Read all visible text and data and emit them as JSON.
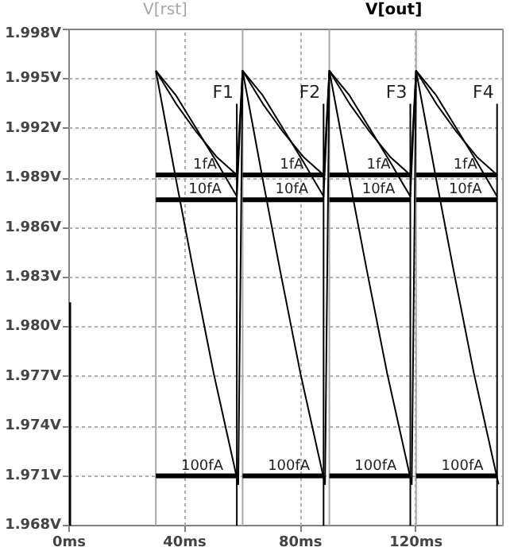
{
  "chart_data": {
    "type": "line",
    "series": [
      {
        "name": "V[rst]",
        "color": "#a8a8a8",
        "x": [
          30,
          30,
          null,
          60,
          60,
          null,
          90,
          90,
          null,
          120,
          120,
          null,
          150,
          150
        ],
        "values": [
          1.968,
          1.998,
          null,
          1.968,
          1.998,
          null,
          1.968,
          1.998,
          null,
          1.968,
          1.998,
          null,
          1.968,
          1.998
        ]
      },
      {
        "name": "V[out]",
        "color": "#000000",
        "x": [
          30,
          37,
          44,
          51,
          58,
          60,
          67,
          74,
          81,
          88,
          90,
          97,
          104,
          111,
          118,
          120,
          127,
          134,
          141,
          148
        ],
        "values": [
          1.9955,
          1.9935,
          1.9918,
          1.9903,
          1.9892,
          1.9955,
          1.9935,
          1.9918,
          1.9903,
          1.9892,
          1.9955,
          1.9935,
          1.9918,
          1.9903,
          1.9892,
          1.9955,
          1.9935,
          1.9918,
          1.9903,
          1.9892
        ]
      },
      {
        "color": "#000000",
        "x": [
          30,
          37,
          44,
          51,
          58,
          60,
          67,
          74,
          81,
          88,
          90,
          97,
          104,
          111,
          118,
          120,
          127,
          134,
          141,
          148
        ],
        "values": [
          1.9955,
          1.994,
          1.992,
          1.99,
          1.9879,
          1.9955,
          1.994,
          1.992,
          1.99,
          1.9879,
          1.9955,
          1.994,
          1.992,
          1.99,
          1.9879,
          1.9955,
          1.994,
          1.992,
          1.99,
          1.9879
        ]
      },
      {
        "color": "#000000",
        "x": [
          30,
          37,
          43,
          50,
          58.5,
          60,
          67,
          73,
          80,
          88.5,
          90,
          97,
          103,
          110,
          118.5,
          120,
          127,
          133,
          140,
          148.5
        ],
        "values": [
          1.9955,
          1.9889,
          1.9834,
          1.9772,
          1.9705,
          1.9955,
          1.9889,
          1.9834,
          1.9772,
          1.9705,
          1.9955,
          1.9889,
          1.9834,
          1.9772,
          1.9705,
          1.9955,
          1.9889,
          1.9834,
          1.9772,
          1.9705
        ]
      },
      {
        "color": "#000000",
        "x": [
          58,
          58,
          null,
          88,
          88,
          null,
          118,
          118,
          null,
          148,
          148
        ],
        "values": [
          1.9935,
          1.968,
          null,
          1.9935,
          1.968,
          null,
          1.9935,
          1.968,
          null,
          1.9935,
          1.968
        ]
      },
      {
        "color": "#000000",
        "x": [
          0,
          0
        ],
        "values": [
          1.968,
          1.9815
        ]
      },
      {
        "color": "#000000",
        "x": [
          30,
          58,
          null,
          60,
          88,
          null,
          90,
          118,
          null,
          120,
          148
        ],
        "values": [
          1.9892,
          1.9892,
          null,
          1.9892,
          1.9892,
          null,
          1.9892,
          1.9892,
          null,
          1.9892,
          1.9892
        ]
      },
      {
        "color": "#000000",
        "x": [
          30,
          58,
          null,
          60,
          88,
          null,
          90,
          118,
          null,
          120,
          148
        ],
        "values": [
          1.9877,
          1.9877,
          null,
          1.9877,
          1.9877,
          null,
          1.9877,
          1.9877,
          null,
          1.9877,
          1.9877
        ]
      },
      {
        "color": "#000000",
        "x": [
          30,
          58,
          null,
          60,
          88,
          null,
          90,
          118,
          null,
          120,
          148
        ],
        "values": [
          1.971,
          1.971,
          null,
          1.971,
          1.971,
          null,
          1.971,
          1.971,
          null,
          1.971,
          1.971
        ]
      }
    ],
    "annotations": [
      {
        "text": "F1",
        "x": 58,
        "y": 1.9935
      },
      {
        "text": "F2",
        "x": 88,
        "y": 1.9935
      },
      {
        "text": "F3",
        "x": 118,
        "y": 1.9935
      },
      {
        "text": "F4",
        "x": 148,
        "y": 1.9935
      },
      {
        "text": "1fA",
        "x": 47,
        "y": 1.9892
      },
      {
        "text": "1fA",
        "x": 77,
        "y": 1.9892
      },
      {
        "text": "1fA",
        "x": 107,
        "y": 1.9892
      },
      {
        "text": "1fA",
        "x": 137,
        "y": 1.9892
      },
      {
        "text": "10fA",
        "x": 47,
        "y": 1.9877
      },
      {
        "text": "10fA",
        "x": 77,
        "y": 1.9877
      },
      {
        "text": "10fA",
        "x": 107,
        "y": 1.9877
      },
      {
        "text": "10fA",
        "x": 137,
        "y": 1.9877
      },
      {
        "text": "100fA",
        "x": 46,
        "y": 1.971
      },
      {
        "text": "100fA",
        "x": 76,
        "y": 1.971
      },
      {
        "text": "100fA",
        "x": 106,
        "y": 1.971
      },
      {
        "text": "100fA",
        "x": 136,
        "y": 1.971
      }
    ],
    "xlim": [
      0,
      150
    ],
    "xticks": [
      {
        "value": 0,
        "label": "0ms"
      },
      {
        "value": 40,
        "label": "40ms"
      },
      {
        "value": 80,
        "label": "80ms"
      },
      {
        "value": 120,
        "label": "120ms"
      }
    ],
    "ylim": [
      1.968,
      1.998
    ],
    "yticks": [
      {
        "value": 1.968,
        "label": "1.968V"
      },
      {
        "value": 1.971,
        "label": "1.971V"
      },
      {
        "value": 1.974,
        "label": "1.974V"
      },
      {
        "value": 1.977,
        "label": "1.977V"
      },
      {
        "value": 1.98,
        "label": "1.980V"
      },
      {
        "value": 1.983,
        "label": "1.983V"
      },
      {
        "value": 1.986,
        "label": "1.986V"
      },
      {
        "value": 1.989,
        "label": "1.989V"
      },
      {
        "value": 1.992,
        "label": "1.992V"
      },
      {
        "value": 1.995,
        "label": "1.995V"
      },
      {
        "value": 1.998,
        "label": "1.998V"
      }
    ],
    "grid": true,
    "marker": "none",
    "line_style": "solid"
  }
}
